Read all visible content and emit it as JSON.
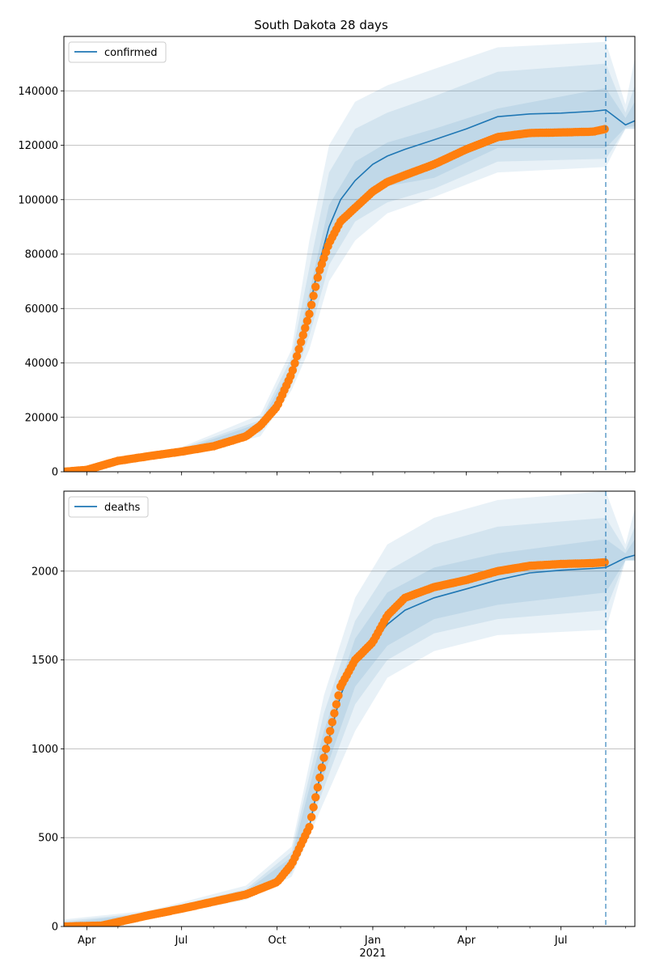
{
  "figure": {
    "title": "South Dakota 28 days"
  },
  "colors": {
    "model_line": "#1f77b4",
    "observed": "#ff7f0e",
    "band": "#1f77b4",
    "cutoff_line": "#1f77b4",
    "grid": "#b0b0b0"
  },
  "chart_data": [
    {
      "type": "line",
      "title": "South Dakota 28 days",
      "legend": {
        "entries": [
          "confirmed"
        ],
        "placement": "top-left"
      },
      "grid": {
        "x": false,
        "y": true
      },
      "x_axis": {
        "range": [
          "2020-03-10",
          "2021-09-10"
        ],
        "tick_labels": [
          {
            "date": "2020-04-01",
            "label": "Apr"
          },
          {
            "date": "2020-07-01",
            "label": "Jul"
          },
          {
            "date": "2020-10-01",
            "label": "Oct"
          },
          {
            "date": "2021-01-01",
            "label": "Jan",
            "sublabel": "2021"
          },
          {
            "date": "2021-04-01",
            "label": "Apr"
          },
          {
            "date": "2021-07-01",
            "label": "Jul"
          }
        ],
        "shown": false
      },
      "y_axis": {
        "range": [
          0,
          160000
        ],
        "ticks": [
          0,
          20000,
          40000,
          60000,
          80000,
          100000,
          120000,
          140000
        ]
      },
      "forecast_start": "2021-08-13",
      "series": [
        {
          "name": "confirmed",
          "kind": "model",
          "x": [
            "2020-03-10",
            "2020-04-01",
            "2020-05-01",
            "2020-06-01",
            "2020-07-01",
            "2020-08-01",
            "2020-09-01",
            "2020-09-15",
            "2020-10-01",
            "2020-10-15",
            "2020-11-01",
            "2020-11-10",
            "2020-11-20",
            "2020-12-01",
            "2020-12-15",
            "2021-01-01",
            "2021-01-15",
            "2021-02-01",
            "2021-03-01",
            "2021-04-01",
            "2021-05-01",
            "2021-06-01",
            "2021-07-01",
            "2021-08-01",
            "2021-08-13",
            "2021-09-01",
            "2021-09-10"
          ],
          "values": [
            0,
            700,
            4000,
            5800,
            7500,
            9500,
            13000,
            17000,
            24000,
            36000,
            60000,
            76000,
            90000,
            100000,
            107000,
            113000,
            116000,
            118500,
            122000,
            126000,
            130500,
            131500,
            131800,
            132500,
            133000,
            127500,
            129000
          ]
        },
        {
          "name": "confirmed (observed)",
          "kind": "observed",
          "x": [
            "2020-03-10",
            "2020-04-01",
            "2020-05-01",
            "2020-06-01",
            "2020-07-01",
            "2020-08-01",
            "2020-09-01",
            "2020-09-15",
            "2020-10-01",
            "2020-10-15",
            "2020-11-01",
            "2020-11-10",
            "2020-11-20",
            "2020-12-01",
            "2020-12-15",
            "2021-01-01",
            "2021-01-15",
            "2021-02-01",
            "2021-03-01",
            "2021-04-01",
            "2021-05-01",
            "2021-06-01",
            "2021-07-01",
            "2021-08-01",
            "2021-08-13"
          ],
          "values": [
            0,
            700,
            4000,
            5800,
            7400,
            9400,
            13000,
            17000,
            24000,
            36000,
            58000,
            73000,
            84000,
            92000,
            97000,
            103000,
            106500,
            109000,
            113000,
            118500,
            123000,
            124500,
            124700,
            125000,
            126000
          ]
        },
        {
          "name": "interval",
          "kind": "band",
          "x": [
            "2020-03-10",
            "2020-07-01",
            "2020-09-15",
            "2020-10-15",
            "2020-11-01",
            "2020-11-20",
            "2020-12-15",
            "2021-01-15",
            "2021-03-01",
            "2021-05-01",
            "2021-08-13",
            "2021-09-01",
            "2021-09-10"
          ],
          "bands": [
            {
              "lower": [
                0,
                6000,
                13000,
                30000,
                45000,
                70000,
                85000,
                95000,
                101000,
                110000,
                112000,
                126000,
                126000
              ],
              "upper": [
                0,
                9000,
                21000,
                45000,
                85000,
                120000,
                136000,
                142000,
                148000,
                156000,
                158000,
                135000,
                152000
              ]
            },
            {
              "lower": [
                0,
                6500,
                14500,
                32000,
                50000,
                76000,
                92000,
                99000,
                104000,
                114000,
                115000,
                126000,
                126000
              ],
              "upper": [
                0,
                8500,
                19000,
                42000,
                75000,
                110000,
                126000,
                132000,
                138000,
                147000,
                150000,
                132000,
                142000
              ]
            },
            {
              "lower": [
                0,
                7000,
                15500,
                34000,
                55000,
                83000,
                99000,
                105000,
                108000,
                119000,
                119000,
                126500,
                127000
              ],
              "upper": [
                0,
                8000,
                18000,
                39000,
                66000,
                98000,
                114000,
                121000,
                126000,
                133500,
                141000,
                130000,
                136000
              ]
            }
          ]
        }
      ]
    },
    {
      "type": "line",
      "legend": {
        "entries": [
          "deaths"
        ],
        "placement": "top-left"
      },
      "grid": {
        "x": false,
        "y": true
      },
      "x_axis": {
        "range": [
          "2020-03-10",
          "2021-09-10"
        ],
        "tick_labels": [
          {
            "date": "2020-04-01",
            "label": "Apr"
          },
          {
            "date": "2020-07-01",
            "label": "Jul"
          },
          {
            "date": "2020-10-01",
            "label": "Oct"
          },
          {
            "date": "2021-01-01",
            "label": "Jan",
            "sublabel": "2021"
          },
          {
            "date": "2021-04-01",
            "label": "Apr"
          },
          {
            "date": "2021-07-01",
            "label": "Jul"
          }
        ],
        "shown": true
      },
      "y_axis": {
        "range": [
          0,
          2450
        ],
        "ticks": [
          0,
          500,
          1000,
          1500,
          2000
        ]
      },
      "forecast_start": "2021-08-13",
      "series": [
        {
          "name": "deaths",
          "kind": "model",
          "x": [
            "2020-03-10",
            "2020-04-15",
            "2020-05-01",
            "2020-06-01",
            "2020-07-01",
            "2020-08-01",
            "2020-09-01",
            "2020-10-01",
            "2020-10-15",
            "2020-11-01",
            "2020-11-15",
            "2020-12-01",
            "2020-12-15",
            "2021-01-01",
            "2021-01-15",
            "2021-02-01",
            "2021-03-01",
            "2021-04-01",
            "2021-05-01",
            "2021-06-01",
            "2021-07-01",
            "2021-08-01",
            "2021-08-13",
            "2021-09-01",
            "2021-09-10"
          ],
          "values": [
            0,
            5,
            25,
            65,
            100,
            140,
            180,
            250,
            350,
            560,
            950,
            1300,
            1500,
            1600,
            1700,
            1780,
            1850,
            1900,
            1950,
            1990,
            2005,
            2015,
            2020,
            2075,
            2090
          ]
        },
        {
          "name": "deaths (observed)",
          "kind": "observed",
          "x": [
            "2020-03-10",
            "2020-04-15",
            "2020-05-01",
            "2020-06-01",
            "2020-07-01",
            "2020-08-01",
            "2020-09-01",
            "2020-10-01",
            "2020-10-15",
            "2020-11-01",
            "2020-11-15",
            "2020-12-01",
            "2020-12-15",
            "2021-01-01",
            "2021-01-15",
            "2021-02-01",
            "2021-03-01",
            "2021-04-01",
            "2021-05-01",
            "2021-06-01",
            "2021-07-01",
            "2021-08-01",
            "2021-08-13"
          ],
          "values": [
            0,
            5,
            25,
            65,
            100,
            140,
            180,
            250,
            350,
            560,
            950,
            1350,
            1500,
            1600,
            1750,
            1850,
            1910,
            1950,
            2000,
            2030,
            2040,
            2045,
            2050
          ]
        },
        {
          "name": "interval",
          "kind": "band",
          "x": [
            "2020-03-10",
            "2020-06-01",
            "2020-09-01",
            "2020-10-15",
            "2020-11-15",
            "2020-12-15",
            "2021-01-15",
            "2021-03-01",
            "2021-05-01",
            "2021-08-13",
            "2021-09-01",
            "2021-09-10"
          ],
          "bands": [
            {
              "lower": [
                0,
                50,
                150,
                280,
                700,
                1100,
                1400,
                1550,
                1640,
                1670,
                2060,
                2060
              ],
              "upper": [
                40,
                90,
                230,
                450,
                1300,
                1850,
                2150,
                2300,
                2400,
                2450,
                2150,
                2350
              ]
            },
            {
              "lower": [
                0,
                55,
                160,
                300,
                780,
                1250,
                1500,
                1650,
                1730,
                1780,
                2060,
                2060
              ],
              "upper": [
                30,
                80,
                210,
                420,
                1200,
                1720,
                2000,
                2150,
                2250,
                2300,
                2120,
                2250
              ]
            },
            {
              "lower": [
                0,
                60,
                170,
                320,
                850,
                1350,
                1580,
                1730,
                1810,
                1880,
                2060,
                2060
              ],
              "upper": [
                20,
                75,
                200,
                390,
                1100,
                1620,
                1880,
                2020,
                2100,
                2180,
                2100,
                2180
              ]
            }
          ]
        }
      ]
    }
  ]
}
